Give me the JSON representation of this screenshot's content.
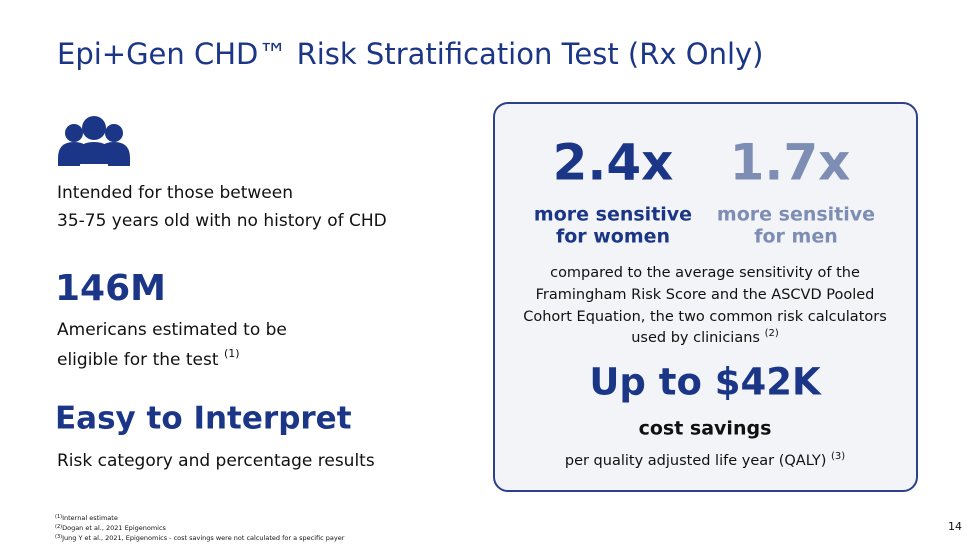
{
  "title": "Epi+Gen CHD™ Risk Stratification Test (Rx Only)",
  "left": {
    "audience": [
      "Intended for those between",
      "35-75 years old with no history of CHD"
    ],
    "stat": "146M",
    "stat_text": [
      "Americans estimated to be",
      "eligible for the test"
    ],
    "stat_ref": "(1)",
    "heading": "Easy to Interpret",
    "heading_text": "Risk category and percentage results"
  },
  "panel": {
    "women": {
      "value": "2.4x",
      "label": [
        "more sensitive",
        "for women"
      ]
    },
    "men": {
      "value": "1.7x",
      "label": [
        "more sensitive",
        "for men"
      ]
    },
    "comparison": [
      "compared to the average sensitivity of the",
      "Framingham Risk Score and the ASCVD Pooled",
      "Cohort Equation, the two common risk calculators",
      "used by clinicians"
    ],
    "comparison_ref": "(2)",
    "savings": "Up to $42K",
    "savings_label": "cost savings",
    "savings_note": "per quality adjusted life year (QALY)",
    "savings_ref": "(3)"
  },
  "footnotes": [
    {
      "ref": "(1)",
      "text": "Internal estimate"
    },
    {
      "ref": "(2)",
      "text": "Dogan et al., 2021 Epigenomics"
    },
    {
      "ref": "(3)",
      "text": "Jung Y et al., 2021, Epigenomics - cost savings were not calculated for a specific payer"
    }
  ],
  "page_number": "14"
}
